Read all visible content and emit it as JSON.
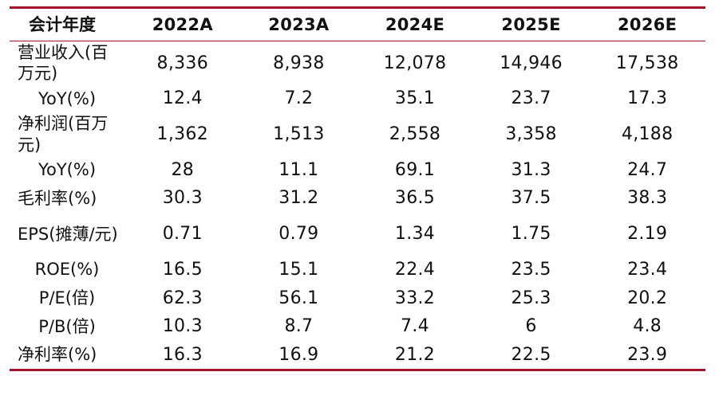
{
  "table": {
    "columns": [
      "会计年度",
      "2022A",
      "2023A",
      "2024E",
      "2025E",
      "2026E"
    ],
    "rows": [
      {
        "label": "营业收入(百万元)",
        "values": [
          "8,336",
          "8,938",
          "12,078",
          "14,946",
          "17,538"
        ]
      },
      {
        "label": "YoY(%)",
        "values": [
          "12.4",
          "7.2",
          "35.1",
          "23.7",
          "17.3"
        ]
      },
      {
        "label": "净利润(百万元)",
        "values": [
          "1,362",
          "1,513",
          "2,558",
          "3,358",
          "4,188"
        ]
      },
      {
        "label": "YoY(%)",
        "values": [
          "28",
          "11.1",
          "69.1",
          "31.3",
          "24.7"
        ]
      },
      {
        "label": "毛利率(%)",
        "values": [
          "30.3",
          "31.2",
          "36.5",
          "37.5",
          "38.3"
        ]
      },
      {
        "label": "EPS(摊薄/元)",
        "values": [
          "0.71",
          "0.79",
          "1.34",
          "1.75",
          "2.19"
        ]
      },
      {
        "label": "ROE(%)",
        "values": [
          "16.5",
          "15.1",
          "22.4",
          "23.5",
          "23.4"
        ]
      },
      {
        "label": "P/E(倍)",
        "values": [
          "62.3",
          "56.1",
          "33.2",
          "25.3",
          "20.2"
        ]
      },
      {
        "label": "P/B(倍)",
        "values": [
          "10.3",
          "8.7",
          "7.4",
          "6",
          "4.8"
        ]
      },
      {
        "label": "净利率(%)",
        "values": [
          "16.3",
          "16.9",
          "21.2",
          "22.5",
          "23.9"
        ]
      }
    ]
  },
  "colors": {
    "rule": "#a3132a",
    "text": "#111111",
    "background": "#ffffff"
  }
}
